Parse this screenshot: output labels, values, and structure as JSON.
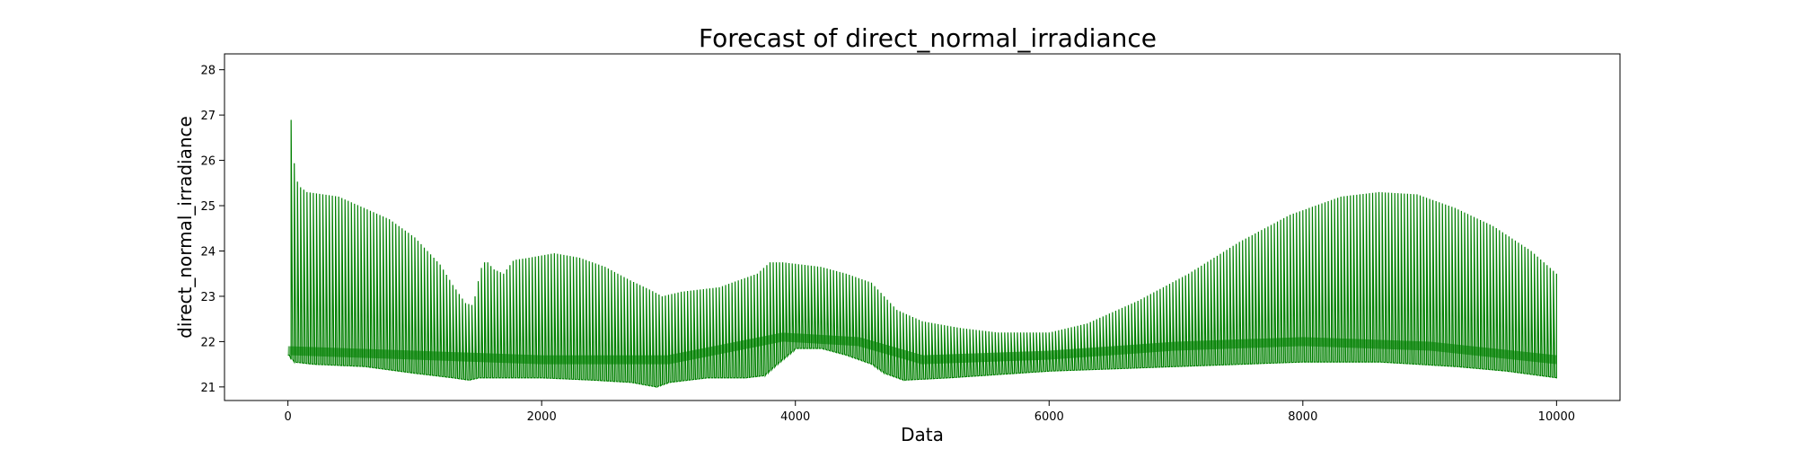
{
  "chart_data": {
    "type": "line",
    "title": "Forecast of direct_normal_irradiance",
    "xlabel": "Data",
    "ylabel": "direct_normal_irradiance",
    "xlim": [
      -500,
      10500
    ],
    "ylim": [
      20.7,
      28.35
    ],
    "xticks": [
      0,
      2000,
      4000,
      6000,
      8000,
      10000
    ],
    "yticks": [
      21,
      22,
      23,
      24,
      25,
      26,
      27,
      28
    ],
    "grid": false,
    "legend": "none",
    "color": "#008000",
    "series": [
      {
        "oscillation_period": 25,
        "x_range": [
          0,
          10000
        ],
        "upper_envelope": [
          [
            0,
            21.7
          ],
          [
            5,
            27.95
          ],
          [
            40,
            26.1
          ],
          [
            80,
            25.45
          ],
          [
            150,
            25.3
          ],
          [
            400,
            25.2
          ],
          [
            800,
            24.7
          ],
          [
            1000,
            24.3
          ],
          [
            1200,
            23.7
          ],
          [
            1300,
            23.25
          ],
          [
            1400,
            22.85
          ],
          [
            1460,
            22.8
          ],
          [
            1520,
            23.6
          ],
          [
            1560,
            23.8
          ],
          [
            1620,
            23.6
          ],
          [
            1700,
            23.5
          ],
          [
            1780,
            23.8
          ],
          [
            1900,
            23.85
          ],
          [
            2100,
            23.95
          ],
          [
            2300,
            23.85
          ],
          [
            2500,
            23.65
          ],
          [
            2700,
            23.35
          ],
          [
            2850,
            23.15
          ],
          [
            2950,
            23.0
          ],
          [
            3100,
            23.1
          ],
          [
            3400,
            23.2
          ],
          [
            3700,
            23.5
          ],
          [
            3800,
            23.75
          ],
          [
            3900,
            23.75
          ],
          [
            4200,
            23.65
          ],
          [
            4400,
            23.5
          ],
          [
            4600,
            23.3
          ],
          [
            4700,
            23.0
          ],
          [
            4800,
            22.7
          ],
          [
            5000,
            22.45
          ],
          [
            5300,
            22.3
          ],
          [
            5600,
            22.2
          ],
          [
            6000,
            22.2
          ],
          [
            6300,
            22.4
          ],
          [
            6700,
            22.9
          ],
          [
            7100,
            23.5
          ],
          [
            7500,
            24.2
          ],
          [
            7900,
            24.8
          ],
          [
            8300,
            25.2
          ],
          [
            8600,
            25.3
          ],
          [
            8900,
            25.25
          ],
          [
            9200,
            24.95
          ],
          [
            9500,
            24.55
          ],
          [
            9800,
            24.0
          ],
          [
            10000,
            23.5
          ]
        ],
        "lower_envelope": [
          [
            0,
            21.7
          ],
          [
            40,
            21.55
          ],
          [
            200,
            21.5
          ],
          [
            600,
            21.45
          ],
          [
            1000,
            21.3
          ],
          [
            1300,
            21.2
          ],
          [
            1420,
            21.15
          ],
          [
            1500,
            21.2
          ],
          [
            1700,
            21.2
          ],
          [
            2000,
            21.2
          ],
          [
            2400,
            21.15
          ],
          [
            2700,
            21.1
          ],
          [
            2900,
            21.0
          ],
          [
            3000,
            21.1
          ],
          [
            3300,
            21.2
          ],
          [
            3600,
            21.2
          ],
          [
            3750,
            21.25
          ],
          [
            3850,
            21.5
          ],
          [
            4000,
            21.85
          ],
          [
            4200,
            21.85
          ],
          [
            4400,
            21.7
          ],
          [
            4600,
            21.5
          ],
          [
            4700,
            21.3
          ],
          [
            4850,
            21.15
          ],
          [
            5200,
            21.2
          ],
          [
            6000,
            21.35
          ],
          [
            7000,
            21.45
          ],
          [
            8000,
            21.55
          ],
          [
            8600,
            21.55
          ],
          [
            9200,
            21.45
          ],
          [
            9600,
            21.35
          ],
          [
            10000,
            21.2
          ]
        ],
        "mean_band": [
          [
            0,
            21.8
          ],
          [
            1000,
            21.7
          ],
          [
            2000,
            21.6
          ],
          [
            3000,
            21.6
          ],
          [
            3900,
            22.1
          ],
          [
            4500,
            22.0
          ],
          [
            5000,
            21.6
          ],
          [
            6000,
            21.7
          ],
          [
            7000,
            21.9
          ],
          [
            8000,
            22.0
          ],
          [
            9000,
            21.9
          ],
          [
            10000,
            21.6
          ]
        ]
      }
    ]
  }
}
